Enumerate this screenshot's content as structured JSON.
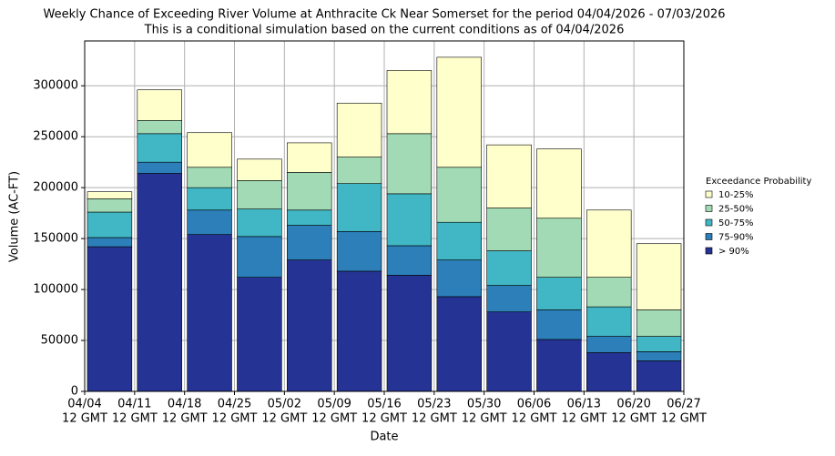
{
  "chart_data": {
    "type": "stacked_bar",
    "title": "Weekly Chance of Exceeding River Volume at Anthracite Ck Near Somerset for the period 04/04/2026 - 07/03/2026",
    "subtitle": "This is a conditional simulation based on the current conditions as of 04/04/2026",
    "x_label": "Date",
    "y_label": "Volume (AC-FT)",
    "xtick_labels": [
      [
        "04/04",
        "12 GMT"
      ],
      [
        "04/11",
        "12 GMT"
      ],
      [
        "04/18",
        "12 GMT"
      ],
      [
        "04/25",
        "12 GMT"
      ],
      [
        "05/02",
        "12 GMT"
      ],
      [
        "05/09",
        "12 GMT"
      ],
      [
        "05/16",
        "12 GMT"
      ],
      [
        "05/23",
        "12 GMT"
      ],
      [
        "05/30",
        "12 GMT"
      ],
      [
        "06/06",
        "12 GMT"
      ],
      [
        "06/13",
        "12 GMT"
      ],
      [
        "06/20",
        "12 GMT"
      ],
      [
        "06/27",
        "12 GMT"
      ]
    ],
    "legend_title": "Exceedance Probability",
    "series": [
      {
        "name": "> 90%",
        "color": "#253494",
        "values": [
          142000,
          214000,
          154000,
          112000,
          129000,
          118000,
          114000,
          93000,
          78000,
          51000,
          38000,
          30000
        ]
      },
      {
        "name": "75-90%",
        "color": "#2c7fb8",
        "values": [
          9000,
          11000,
          24000,
          40000,
          34000,
          39000,
          29000,
          36000,
          26000,
          29000,
          16000,
          9000
        ]
      },
      {
        "name": "50-75%",
        "color": "#41b6c4",
        "values": [
          25000,
          28000,
          22000,
          27000,
          15000,
          47000,
          51000,
          37000,
          34000,
          32000,
          29000,
          15000
        ]
      },
      {
        "name": "25-50%",
        "color": "#a1dab4",
        "values": [
          13000,
          13000,
          20000,
          28000,
          37000,
          26000,
          59000,
          54000,
          42000,
          58000,
          29000,
          26000
        ]
      },
      {
        "name": "10-25%",
        "color": "#ffffcc",
        "values": [
          7000,
          30000,
          34000,
          21000,
          29000,
          53000,
          62000,
          108000,
          62000,
          68000,
          66000,
          65000
        ]
      }
    ],
    "ylim": [
      0,
      344000
    ],
    "yticks": [
      0,
      50000,
      100000,
      150000,
      200000,
      250000,
      300000
    ],
    "grid": true
  }
}
